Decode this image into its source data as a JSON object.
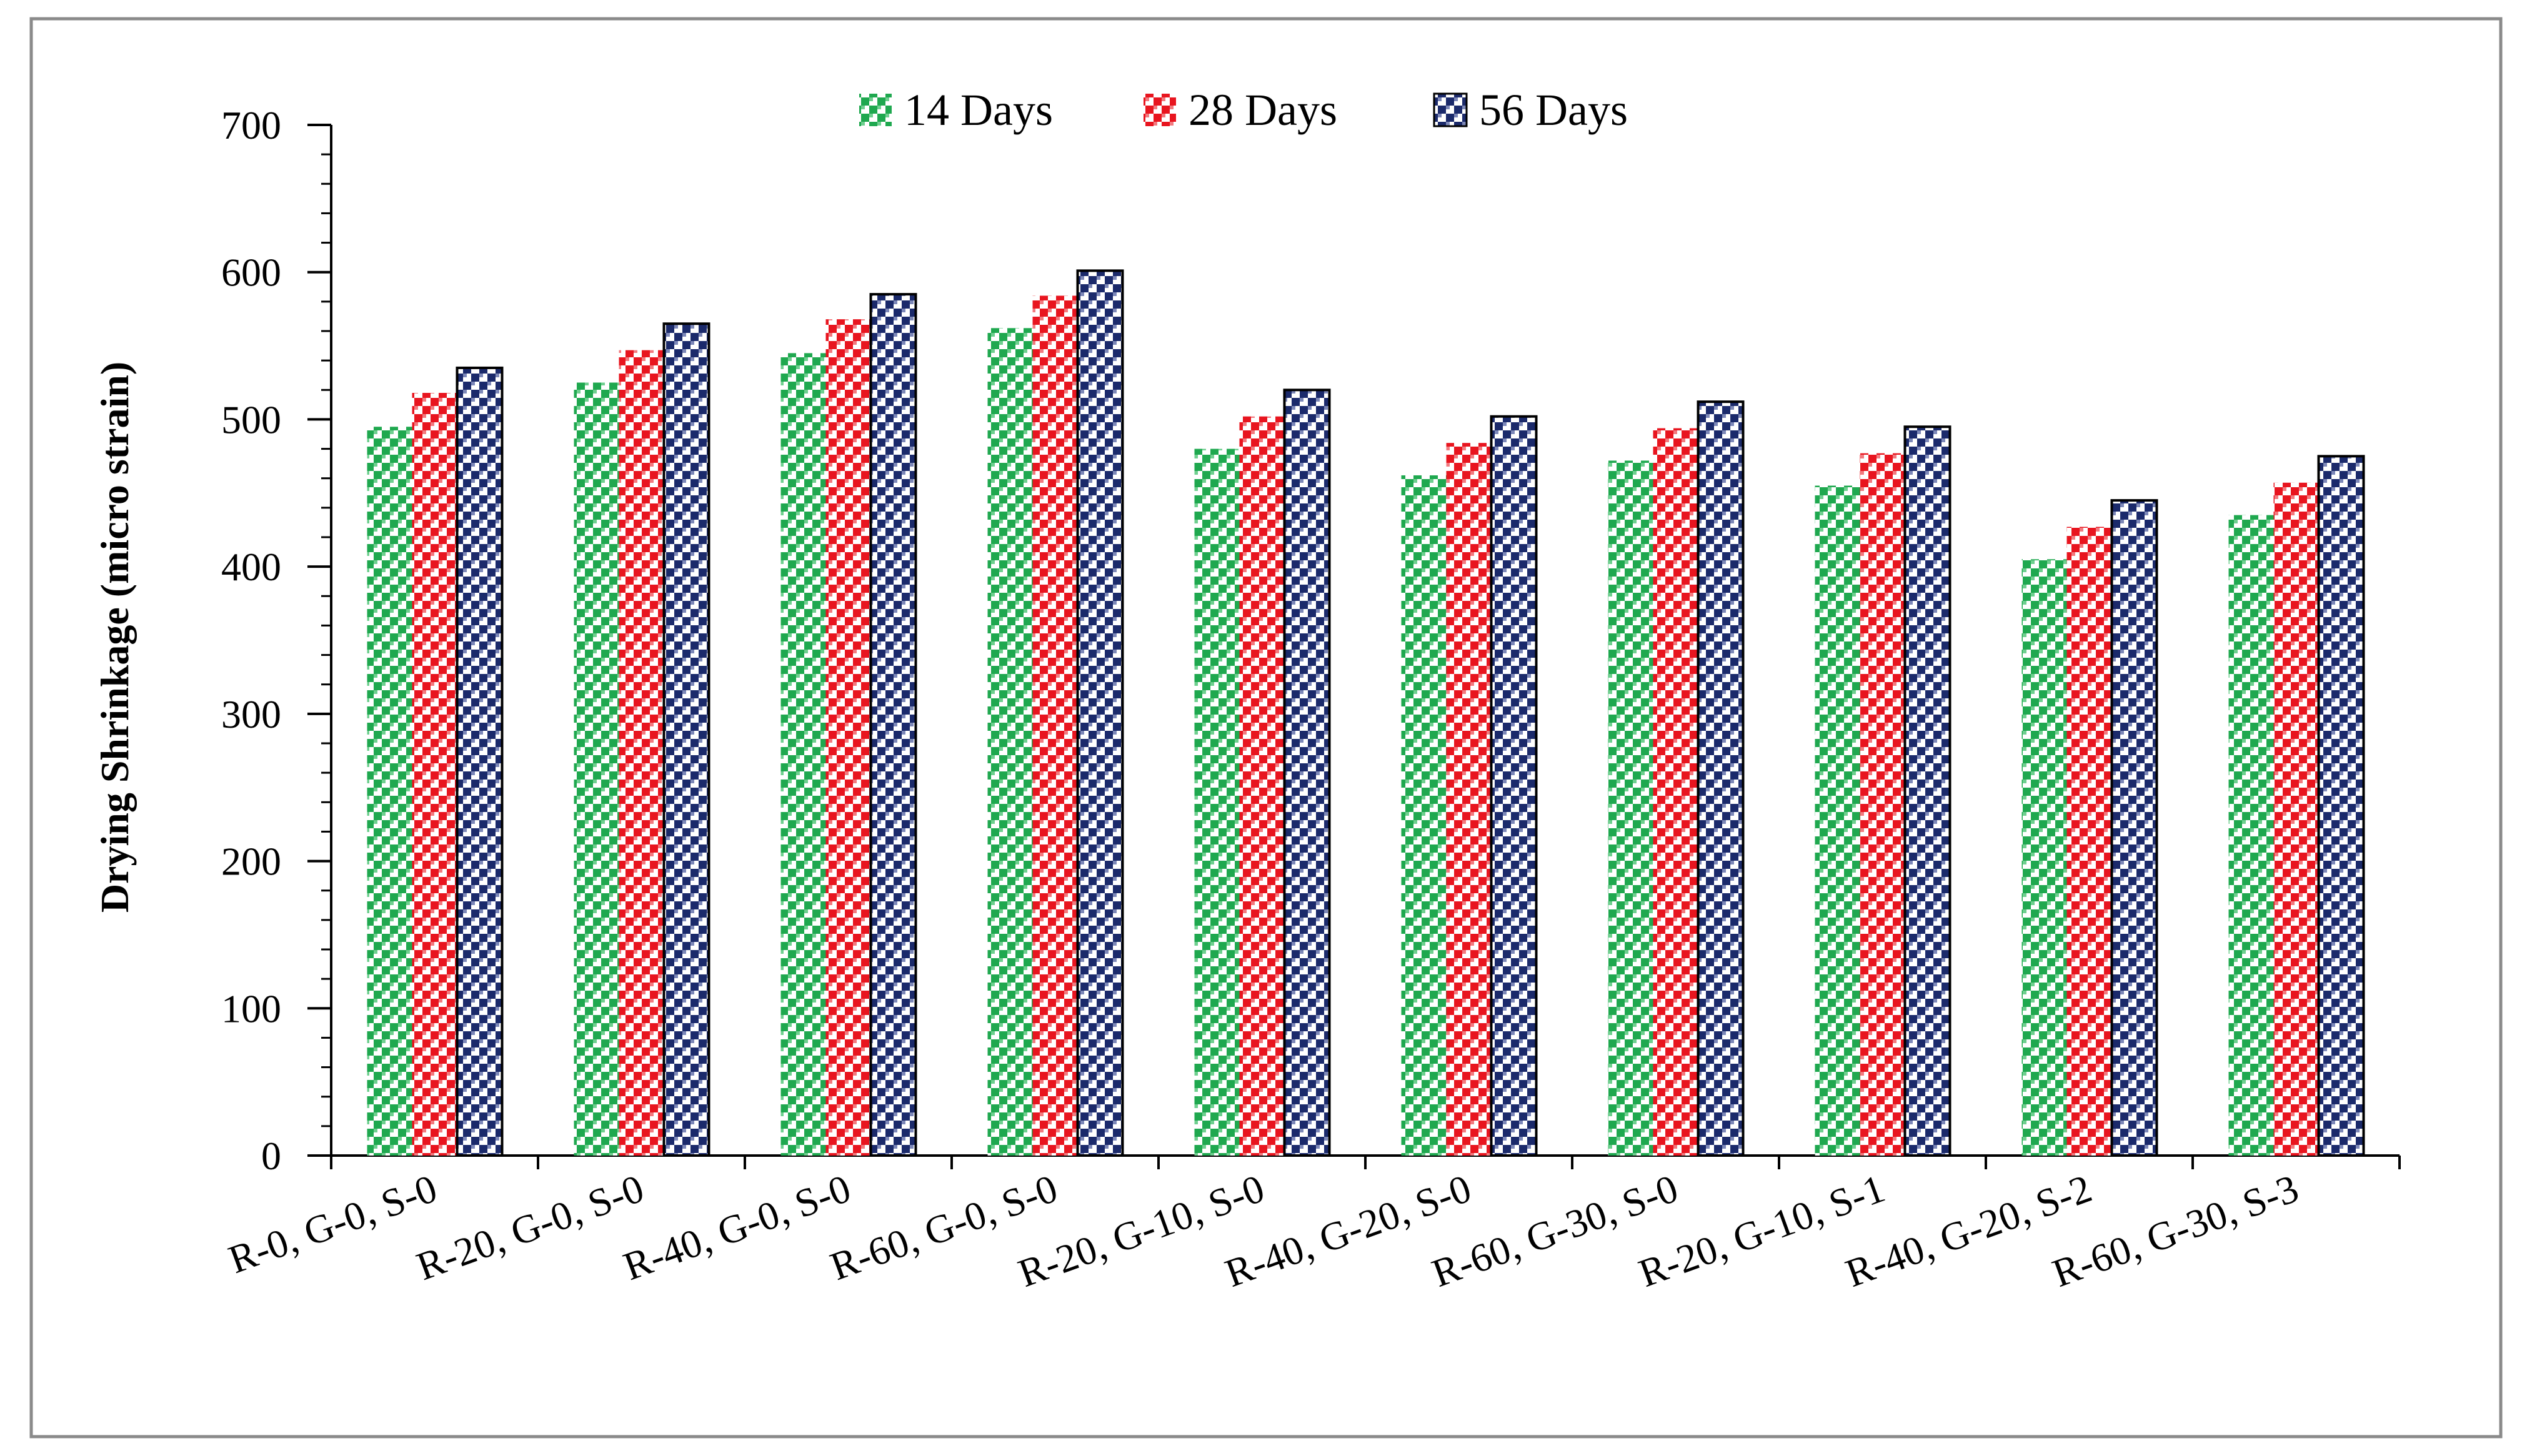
{
  "chart_data": {
    "type": "bar",
    "title": "",
    "xlabel": "",
    "ylabel": "Drying Shrinkage (micro strain)",
    "ylim": [
      0,
      700
    ],
    "yticks": [
      0,
      100,
      200,
      300,
      400,
      500,
      600,
      700
    ],
    "grid": false,
    "legend_position": "top-center",
    "categories": [
      "R-0, G-0, S-0",
      "R-20, G-0, S-0",
      "R-40, G-0, S-0",
      "R-60, G-0, S-0",
      "R-20, G-10, S-0",
      "R-40, G-20, S-0",
      "R-60, G-30, S-0",
      "R-20, G-10, S-1",
      "R-40, G-20, S-2",
      "R-60, G-30, S-3"
    ],
    "series": [
      {
        "name": "14 Days",
        "color": "#1fa84f",
        "values": [
          495,
          525,
          545,
          562,
          480,
          462,
          472,
          455,
          405,
          435
        ]
      },
      {
        "name": "28 Days",
        "color": "#e8151f",
        "values": [
          518,
          547,
          568,
          584,
          502,
          484,
          494,
          477,
          427,
          457
        ]
      },
      {
        "name": "56 Days",
        "color": "#1b2a6b",
        "values": [
          535,
          565,
          585,
          601,
          520,
          502,
          512,
          495,
          445,
          475
        ]
      }
    ]
  }
}
